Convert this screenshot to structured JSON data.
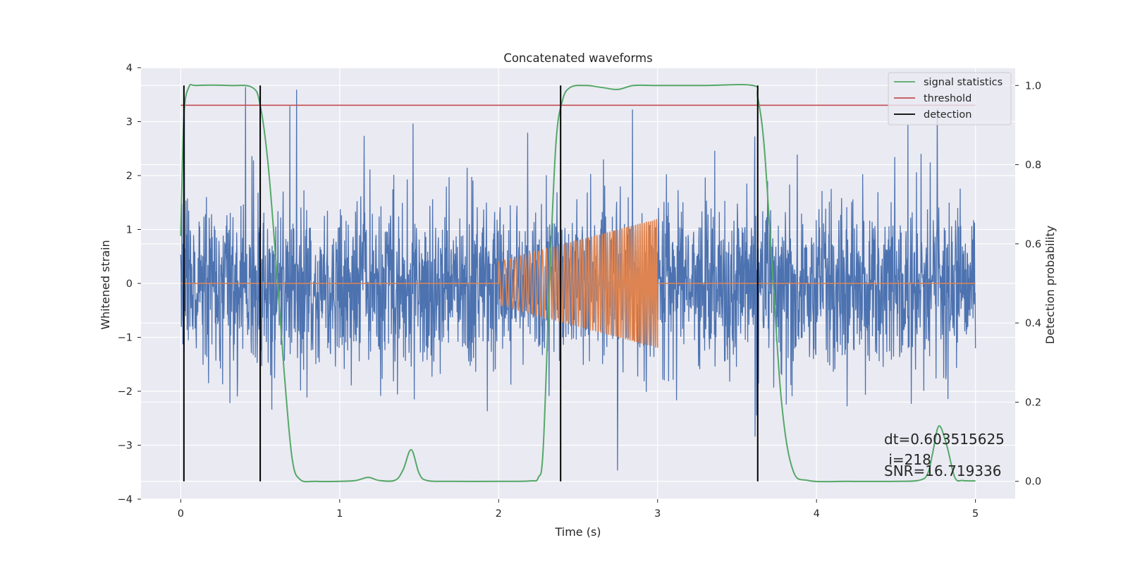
{
  "chart_data": {
    "type": "line",
    "title": "Concatenated waveforms",
    "xlabel": "Time (s)",
    "ylabel": "Whitened strain",
    "y2label": "Detection probability",
    "xlim": [
      -0.25,
      5.25
    ],
    "ylim": [
      -4,
      4
    ],
    "y2lim": [
      -0.045,
      1.045
    ],
    "xticks": [
      0,
      1,
      2,
      3,
      4,
      5
    ],
    "yticks": [
      -4,
      -3,
      -2,
      -1,
      0,
      1,
      2,
      3,
      4
    ],
    "y2ticks": [
      0.0,
      0.2,
      0.4,
      0.6,
      0.8,
      1.0
    ],
    "tick_labels": {
      "x": [
        "0",
        "1",
        "2",
        "3",
        "4",
        "5"
      ],
      "y": [
        "−4",
        "−3",
        "−2",
        "−1",
        "0",
        "1",
        "2",
        "3",
        "4"
      ],
      "y2": [
        "0.0",
        "0.2",
        "0.4",
        "0.6",
        "0.8",
        "1.0"
      ]
    },
    "grid": true,
    "legend_position": "top-right",
    "colors": {
      "strain": "#4c72b0",
      "injection": "#dd8452",
      "statistics": "#55a868",
      "threshold": "#c44e52",
      "detection": "#000000",
      "plot_bg": "#eaeaf2",
      "grid": "#ffffff"
    },
    "legend": [
      {
        "name": "signal statistics",
        "color": "#55a868"
      },
      {
        "name": "threshold",
        "color": "#c44e52"
      },
      {
        "name": "detection",
        "color": "#000000"
      }
    ],
    "series": [
      {
        "name": "signal statistics",
        "axis": "right",
        "x": [
          0,
          0.02,
          0.05,
          0.1,
          0.3,
          0.45,
          0.5,
          0.55,
          0.6,
          0.65,
          0.7,
          0.75,
          0.85,
          1.0,
          1.1,
          1.18,
          1.25,
          1.35,
          1.4,
          1.45,
          1.5,
          1.55,
          1.7,
          2.0,
          2.2,
          2.25,
          2.28,
          2.32,
          2.36,
          2.4,
          2.45,
          2.55,
          2.65,
          2.75,
          2.85,
          3.0,
          3.3,
          3.6,
          3.63,
          3.67,
          3.72,
          3.78,
          3.85,
          3.95,
          4.2,
          4.5,
          4.65,
          4.7,
          4.73,
          4.77,
          4.82,
          4.87,
          4.92,
          5.0
        ],
        "values": [
          0.62,
          0.92,
          0.995,
          1.0,
          1.0,
          0.995,
          0.95,
          0.8,
          0.55,
          0.28,
          0.06,
          0.005,
          0.0,
          0.0,
          0.002,
          0.01,
          0.002,
          0.003,
          0.03,
          0.08,
          0.02,
          0.002,
          0.0,
          0.0,
          0.001,
          0.01,
          0.08,
          0.5,
          0.85,
          0.96,
          0.995,
          1.0,
          0.995,
          0.99,
          1.0,
          1.0,
          1.0,
          1.0,
          0.97,
          0.85,
          0.55,
          0.2,
          0.03,
          0.002,
          0.0,
          0.0,
          0.003,
          0.02,
          0.07,
          0.14,
          0.09,
          0.01,
          0.002,
          0.001
        ]
      },
      {
        "name": "threshold",
        "axis": "right",
        "x": [
          0,
          5
        ],
        "values": [
          0.95,
          0.95
        ]
      },
      {
        "name": "detection",
        "axis": "right",
        "type": "vlines",
        "x": [
          0.02,
          0.5,
          2.39,
          3.63
        ],
        "ymin": 0.0,
        "ymax": 1.0
      },
      {
        "axis": "left",
        "type": "noise",
        "x_range": [
          0,
          5
        ],
        "typical_amplitude": 1.5,
        "max_amplitude": 3.7,
        "min_amplitude": -3.7
      },
      {
        "axis": "left",
        "type": "chirp",
        "x_range": [
          2.0,
          3.0
        ],
        "baseline": 0.0,
        "amplitude_start": 0.4,
        "amplitude_end": 1.2,
        "frequency_start_hz": 25,
        "frequency_end_hz": 80
      }
    ],
    "annotations": [
      "dt=0.603515625",
      " i=218",
      "SNR=16.719336"
    ]
  }
}
